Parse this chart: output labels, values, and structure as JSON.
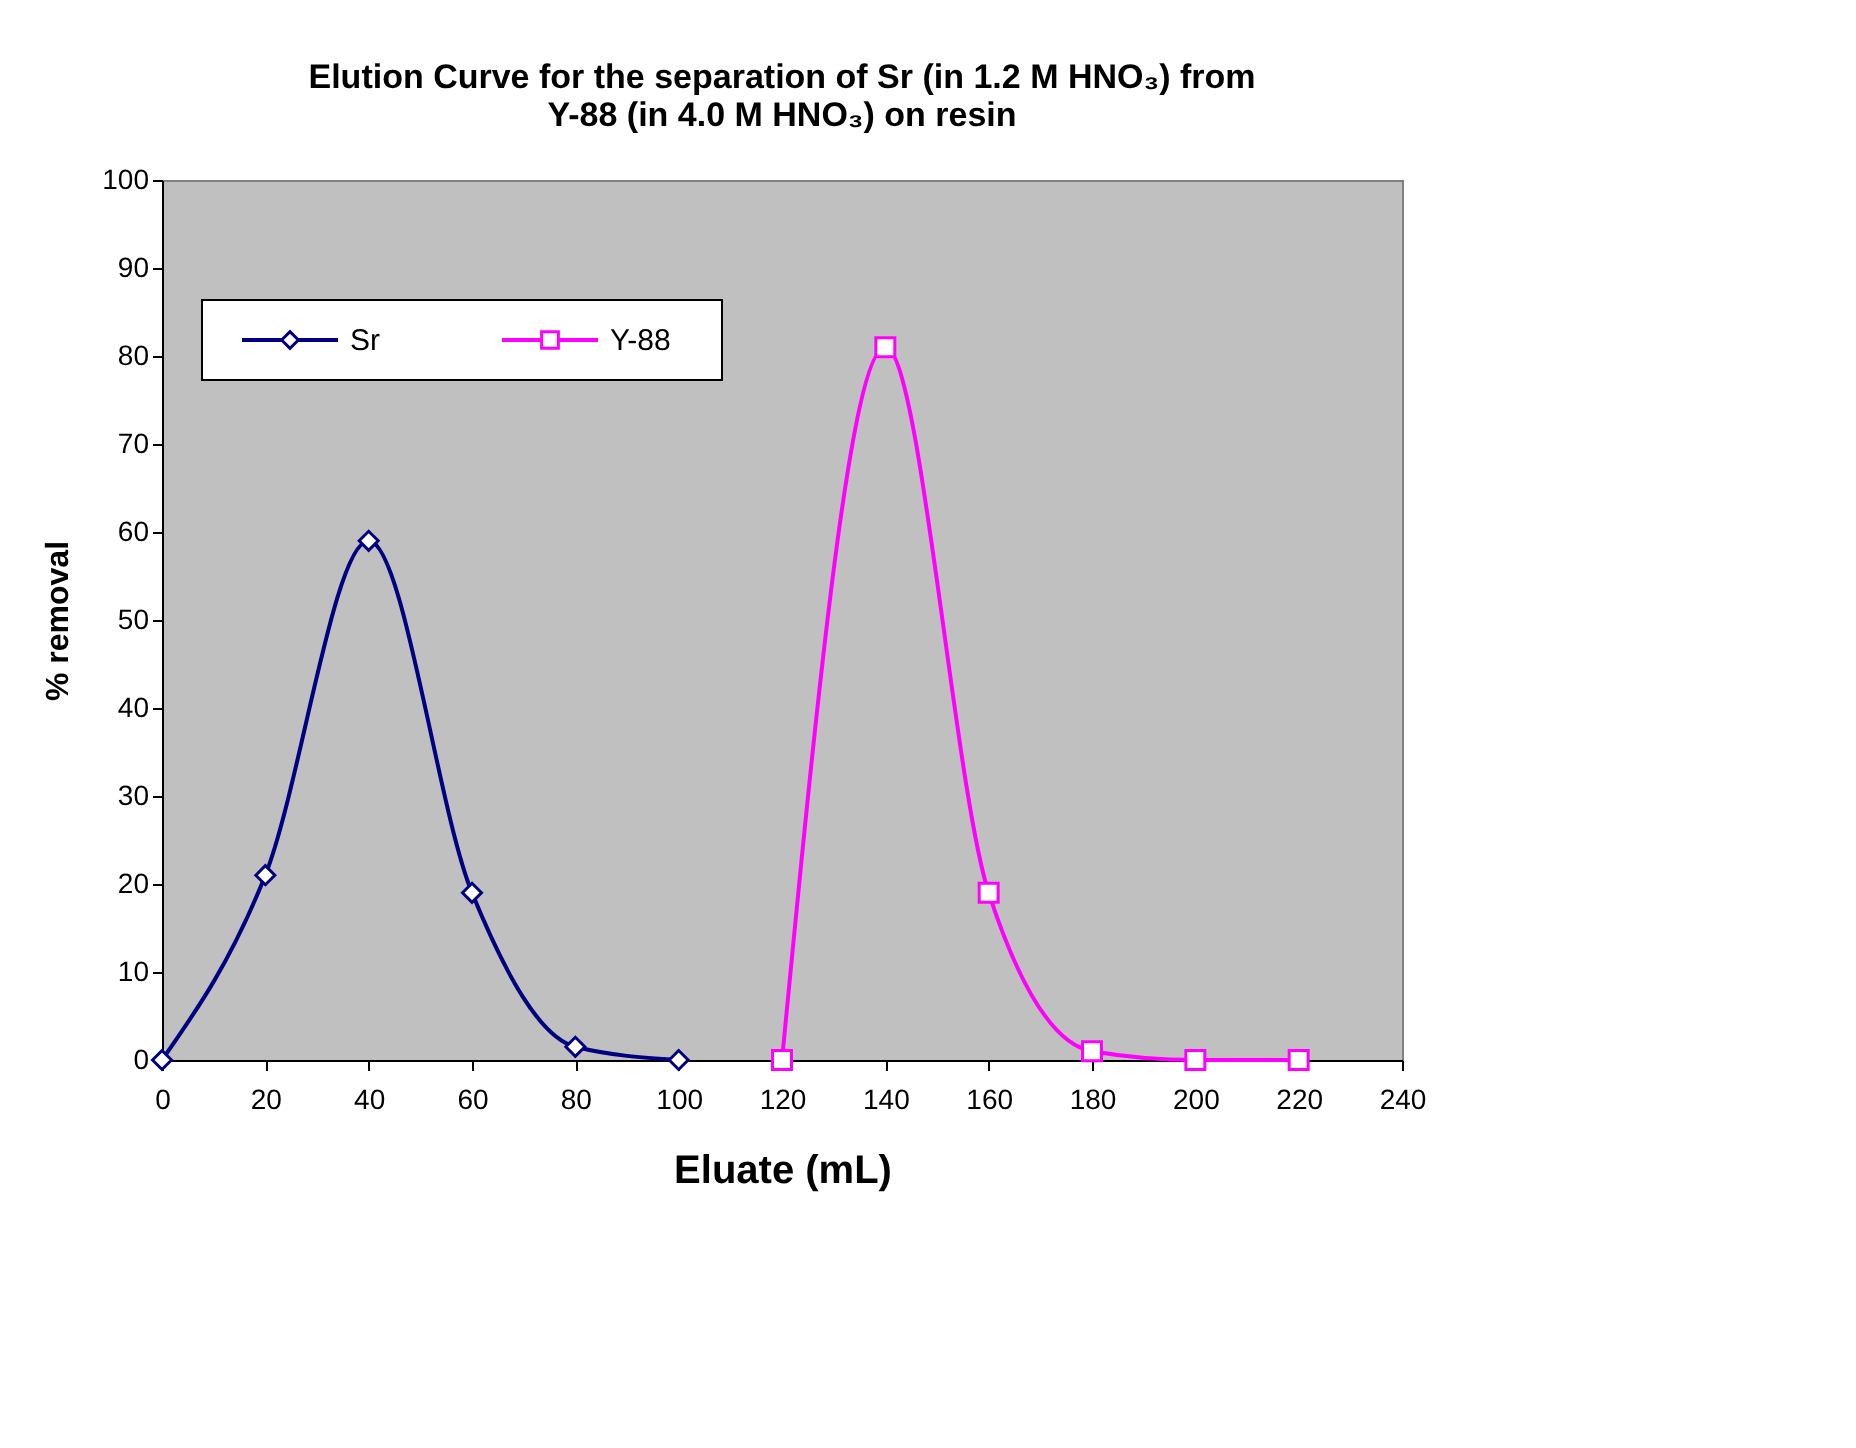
{
  "chart_data": {
    "type": "line",
    "title": "Elution Curve for the separation of Sr (in 1.2 M HNO₃) from\nY-88 (in 4.0 M HNO₃) on resin",
    "xlabel": "Eluate (mL)",
    "ylabel": "% removal",
    "series": [
      {
        "name": "Sr",
        "color": "#000080",
        "marker": "diamond",
        "x": [
          0,
          20,
          40,
          60,
          80,
          100
        ],
        "values": [
          0,
          21,
          59,
          19,
          1.5,
          0
        ]
      },
      {
        "name": "Y-88",
        "color": "#ff00ff",
        "marker": "square",
        "x": [
          120,
          140,
          160,
          180,
          200,
          220
        ],
        "values": [
          0,
          81,
          19,
          1,
          0,
          0
        ]
      }
    ],
    "xlim": [
      0,
      240
    ],
    "xticks": [
      0,
      20,
      40,
      60,
      80,
      100,
      120,
      140,
      160,
      180,
      200,
      220,
      240
    ],
    "ylim": [
      0,
      100
    ],
    "yticks": [
      0,
      10,
      20,
      30,
      40,
      50,
      60,
      70,
      80,
      90,
      100
    ],
    "grid": false,
    "legend": "top left",
    "line_style": "solid"
  }
}
